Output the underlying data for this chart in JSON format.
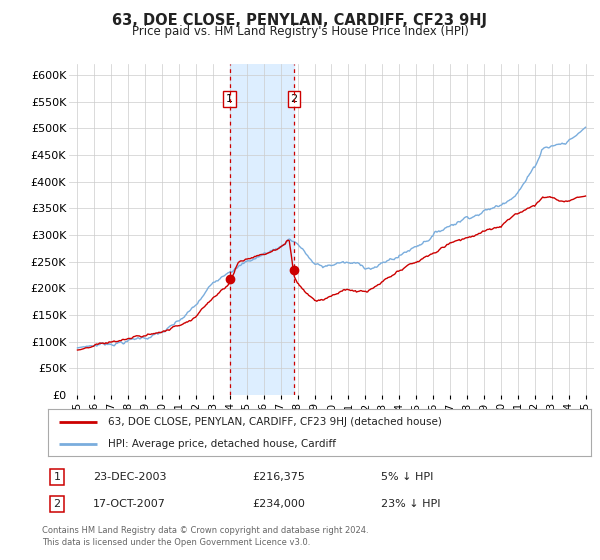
{
  "title": "63, DOE CLOSE, PENYLAN, CARDIFF, CF23 9HJ",
  "subtitle": "Price paid vs. HM Land Registry's House Price Index (HPI)",
  "legend_line1": "63, DOE CLOSE, PENYLAN, CARDIFF, CF23 9HJ (detached house)",
  "legend_line2": "HPI: Average price, detached house, Cardiff",
  "footnote1": "Contains HM Land Registry data © Crown copyright and database right 2024.",
  "footnote2": "This data is licensed under the Open Government Licence v3.0.",
  "marker1_date": "23-DEC-2003",
  "marker1_price": "£216,375",
  "marker1_hpi": "5% ↓ HPI",
  "marker1_x": 2003.98,
  "marker1_y": 216375,
  "marker2_date": "17-OCT-2007",
  "marker2_price": "£234,000",
  "marker2_hpi": "23% ↓ HPI",
  "marker2_x": 2007.79,
  "marker2_y": 234000,
  "shade_x1": 2003.98,
  "shade_x2": 2007.79,
  "property_color": "#cc0000",
  "hpi_color": "#7aaddd",
  "shade_color": "#ddeeff",
  "background_color": "#ffffff",
  "grid_color": "#cccccc",
  "ylim": [
    0,
    620000
  ],
  "xlim_start": 1994.5,
  "xlim_end": 2025.5,
  "yticks": [
    0,
    50000,
    100000,
    150000,
    200000,
    250000,
    300000,
    350000,
    400000,
    450000,
    500000,
    550000,
    600000
  ],
  "ytick_labels": [
    "£0",
    "£50K",
    "£100K",
    "£150K",
    "£200K",
    "£250K",
    "£300K",
    "£350K",
    "£400K",
    "£450K",
    "£500K",
    "£550K",
    "£600K"
  ],
  "xtick_years": [
    1995,
    1996,
    1997,
    1998,
    1999,
    2000,
    2001,
    2002,
    2003,
    2004,
    2005,
    2006,
    2007,
    2008,
    2009,
    2010,
    2011,
    2012,
    2013,
    2014,
    2015,
    2016,
    2017,
    2018,
    2019,
    2020,
    2021,
    2022,
    2023,
    2024,
    2025
  ]
}
